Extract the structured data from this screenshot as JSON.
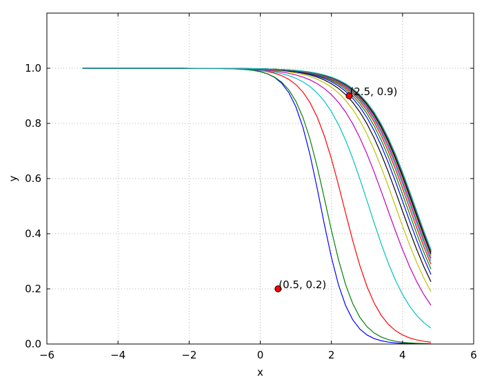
{
  "chart_data": {
    "type": "line",
    "title": "",
    "xlabel": "x",
    "ylabel": "y",
    "xlim": [
      -6,
      6
    ],
    "ylim": [
      0.0,
      1.2
    ],
    "grid": true,
    "xticks": [
      -6,
      -4,
      -2,
      0,
      2,
      4,
      6
    ],
    "xtick_labels": [
      "−6",
      "−4",
      "−2",
      "0",
      "2",
      "4",
      "6"
    ],
    "yticks": [
      0.0,
      0.2,
      0.4,
      0.6,
      0.8,
      1.0
    ],
    "ytick_labels": [
      "0.0",
      "0.2",
      "0.4",
      "0.6",
      "0.8",
      "1.0"
    ],
    "x_range": [
      -5.0,
      4.8
    ],
    "curve_family": "y = 1 / (1 + exp(k * (x - c)))",
    "series": [
      {
        "color": "#0000ff",
        "c": 1.7,
        "k": 2.6
      },
      {
        "color": "#008000",
        "c": 1.85,
        "k": 2.35
      },
      {
        "color": "#ff0000",
        "c": 2.35,
        "k": 2.05
      },
      {
        "color": "#00bfbf",
        "c": 3.05,
        "k": 1.6
      },
      {
        "color": "#bf00bf",
        "c": 3.55,
        "k": 1.45
      },
      {
        "color": "#bfbf00",
        "c": 3.8,
        "k": 1.45
      },
      {
        "color": "#000000",
        "c": 3.95,
        "k": 1.45
      },
      {
        "color": "#0000ff",
        "c": 4.05,
        "k": 1.45
      },
      {
        "color": "#008000",
        "c": 4.12,
        "k": 1.45
      },
      {
        "color": "#ff0000",
        "c": 4.18,
        "k": 1.45
      },
      {
        "color": "#00bfbf",
        "c": 4.22,
        "k": 1.45
      },
      {
        "color": "#bf00bf",
        "c": 4.25,
        "k": 1.45
      },
      {
        "color": "#bfbf00",
        "c": 4.28,
        "k": 1.45
      },
      {
        "color": "#000000",
        "c": 4.3,
        "k": 1.45
      },
      {
        "color": "#0000ff",
        "c": 4.32,
        "k": 1.45
      },
      {
        "color": "#008000",
        "c": 4.33,
        "k": 1.45
      },
      {
        "color": "#ff0000",
        "c": 4.34,
        "k": 1.45
      },
      {
        "color": "#00bfbf",
        "c": 4.35,
        "k": 1.45
      }
    ],
    "annotations": [
      {
        "x": 0.5,
        "y": 0.2,
        "text": "(0.5, 0.2)",
        "marker_color": "#ff0000"
      },
      {
        "x": 2.5,
        "y": 0.9,
        "text": "(2.5, 0.9)",
        "marker_color": "#ff0000"
      }
    ]
  }
}
